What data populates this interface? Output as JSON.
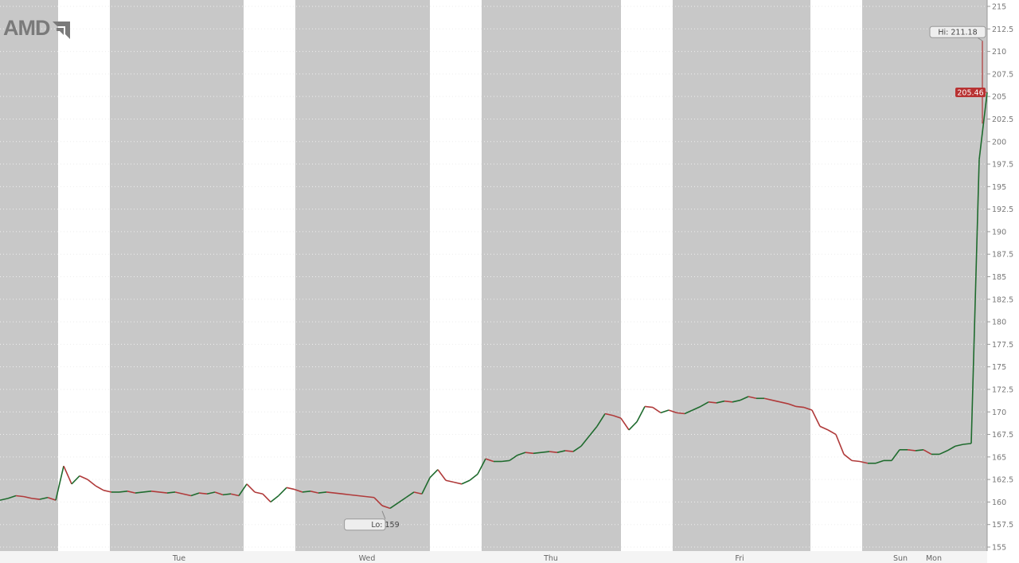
{
  "logo": {
    "text": "AMD"
  },
  "colors": {
    "up": "#1f6b2e",
    "down": "#b03a3a",
    "extended_hours_bg": "#c8c8c8",
    "regular_hours_bg": "#ffffff",
    "last_price_badge": "#b83232"
  },
  "chart_data": {
    "type": "line",
    "title": "",
    "xlabel": "",
    "ylabel": "",
    "ylim": [
      155,
      215
    ],
    "y_ticks": [
      "155",
      "157.5",
      "160",
      "162.5",
      "165",
      "167.5",
      "170",
      "172.5",
      "175",
      "177.5",
      "180",
      "182.5",
      "185",
      "187.5",
      "190",
      "192.5",
      "195",
      "197.5",
      "200",
      "202.5",
      "205",
      "207.5",
      "210",
      "212.5",
      "215"
    ],
    "x_tick_labels": [
      {
        "label": "Tue",
        "at": 22.5
      },
      {
        "label": "Wed",
        "at": 46.1
      },
      {
        "label": "Thu",
        "at": 69.2
      },
      {
        "label": "Fri",
        "at": 92.9
      },
      {
        "label": "Sun",
        "at": 113.1
      },
      {
        "label": "Mon",
        "at": 117.3
      }
    ],
    "grid": true,
    "regular_sessions": [
      [
        7.3,
        13.8
      ],
      [
        30.6,
        37.1
      ],
      [
        54.0,
        60.5
      ],
      [
        78.0,
        84.5
      ],
      [
        101.8,
        108.3
      ]
    ],
    "values": [
      160.2,
      160.4,
      160.7,
      160.6,
      160.4,
      160.3,
      160.5,
      160.2,
      164.0,
      162.0,
      162.9,
      162.5,
      161.8,
      161.3,
      161.1,
      161.1,
      161.2,
      161.0,
      161.1,
      161.2,
      161.1,
      161.0,
      161.1,
      160.9,
      160.7,
      161.0,
      160.9,
      161.1,
      160.8,
      160.9,
      160.7,
      162.0,
      161.1,
      160.9,
      160.0,
      160.7,
      161.6,
      161.4,
      161.1,
      161.2,
      161.0,
      161.1,
      161.0,
      160.9,
      160.8,
      160.7,
      160.6,
      160.5,
      159.6,
      159.3,
      159.9,
      160.5,
      161.1,
      160.9,
      162.7,
      163.6,
      162.4,
      162.2,
      162.0,
      162.4,
      163.1,
      164.8,
      164.5,
      164.5,
      164.6,
      165.2,
      165.5,
      165.4,
      165.5,
      165.6,
      165.5,
      165.7,
      165.6,
      166.2,
      167.3,
      168.4,
      169.8,
      169.6,
      169.3,
      168.0,
      168.9,
      170.6,
      170.5,
      169.9,
      170.2,
      169.9,
      169.8,
      170.2,
      170.6,
      171.1,
      171.0,
      171.2,
      171.1,
      171.3,
      171.7,
      171.5,
      171.5,
      171.3,
      171.1,
      170.9,
      170.6,
      170.5,
      170.2,
      168.4,
      168.0,
      167.5,
      165.3,
      164.6,
      164.5,
      164.3,
      164.3,
      164.6,
      164.6,
      165.8,
      165.8,
      165.7,
      165.8,
      165.3,
      165.3,
      165.7,
      166.2,
      166.4,
      166.5,
      198.0,
      205.46
    ],
    "annotations": {
      "high": "Hi: 211.18",
      "high_value": 211.18,
      "high_at": 123.4,
      "low": "Lo: 159",
      "low_value": 159,
      "low_at": 49.0
    },
    "last_price": "205.46"
  }
}
